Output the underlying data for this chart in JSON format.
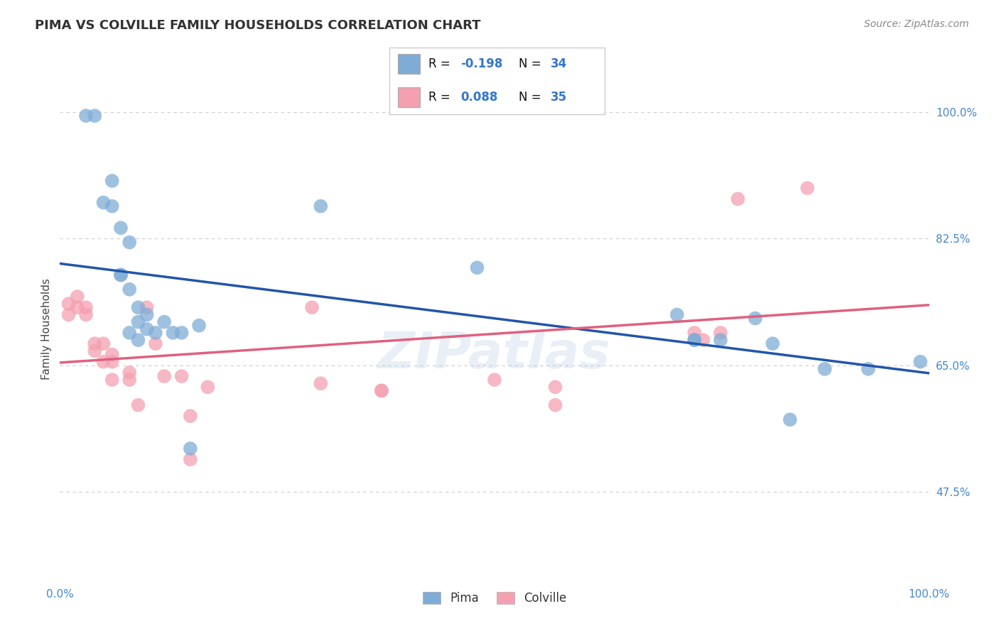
{
  "title": "PIMA VS COLVILLE FAMILY HOUSEHOLDS CORRELATION CHART",
  "source": "Source: ZipAtlas.com",
  "ylabel": "Family Households",
  "xlabel": "",
  "xlim": [
    0.0,
    1.0
  ],
  "ylim": [
    0.35,
    1.05
  ],
  "yticks": [
    0.475,
    0.65,
    0.825,
    1.0
  ],
  "ytick_labels": [
    "47.5%",
    "65.0%",
    "82.5%",
    "100.0%"
  ],
  "xticks": [
    0.0,
    0.2,
    0.4,
    0.6,
    0.8,
    1.0
  ],
  "xtick_labels": [
    "0.0%",
    "",
    "",
    "",
    "",
    "100.0%"
  ],
  "pima_R": -0.198,
  "pima_N": 34,
  "colville_R": 0.088,
  "colville_N": 35,
  "pima_color": "#7facd6",
  "colville_color": "#f4a0b0",
  "pima_line_color": "#2255aa",
  "colville_line_color": "#e06080",
  "background_color": "#ffffff",
  "grid_color": "#cccccc",
  "pima_x": [
    0.03,
    0.04,
    0.05,
    0.06,
    0.06,
    0.07,
    0.07,
    0.07,
    0.08,
    0.08,
    0.08,
    0.09,
    0.09,
    0.09,
    0.1,
    0.1,
    0.11,
    0.12,
    0.13,
    0.14,
    0.15,
    0.16,
    0.3,
    0.48,
    0.71,
    0.73,
    0.73,
    0.76,
    0.8,
    0.82,
    0.84,
    0.88,
    0.93,
    0.99
  ],
  "pima_y": [
    0.995,
    0.995,
    0.875,
    0.905,
    0.87,
    0.84,
    0.775,
    0.775,
    0.755,
    0.82,
    0.695,
    0.71,
    0.685,
    0.73,
    0.72,
    0.7,
    0.695,
    0.71,
    0.695,
    0.695,
    0.535,
    0.705,
    0.87,
    0.785,
    0.72,
    0.685,
    0.685,
    0.685,
    0.715,
    0.68,
    0.575,
    0.645,
    0.645,
    0.655
  ],
  "colville_x": [
    0.01,
    0.01,
    0.02,
    0.02,
    0.03,
    0.03,
    0.04,
    0.04,
    0.05,
    0.05,
    0.06,
    0.06,
    0.06,
    0.08,
    0.08,
    0.09,
    0.1,
    0.11,
    0.12,
    0.14,
    0.15,
    0.15,
    0.17,
    0.29,
    0.3,
    0.37,
    0.37,
    0.5,
    0.57,
    0.57,
    0.73,
    0.74,
    0.76,
    0.78,
    0.86
  ],
  "colville_y": [
    0.735,
    0.72,
    0.745,
    0.73,
    0.73,
    0.72,
    0.68,
    0.67,
    0.68,
    0.655,
    0.665,
    0.655,
    0.63,
    0.64,
    0.63,
    0.595,
    0.73,
    0.68,
    0.635,
    0.635,
    0.52,
    0.58,
    0.62,
    0.73,
    0.625,
    0.615,
    0.615,
    0.63,
    0.62,
    0.595,
    0.695,
    0.685,
    0.695,
    0.88,
    0.895
  ],
  "watermark": "ZIPatlas",
  "title_fontsize": 13,
  "axis_label_fontsize": 11,
  "tick_fontsize": 11,
  "legend_fontsize": 12,
  "source_fontsize": 10
}
